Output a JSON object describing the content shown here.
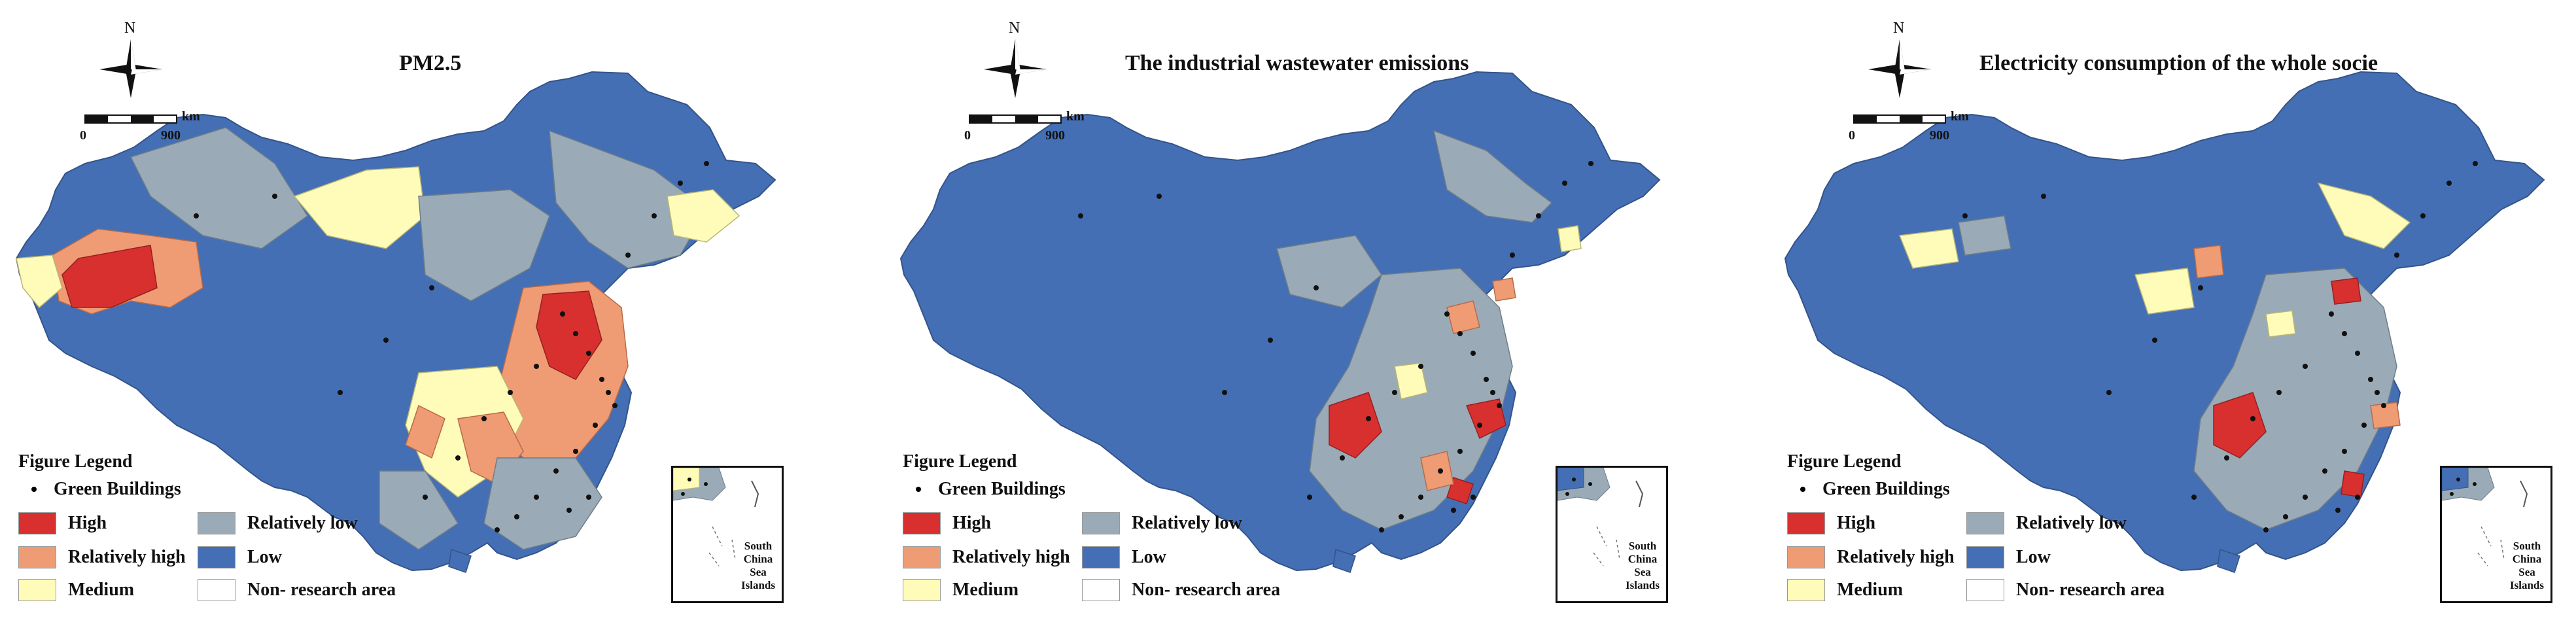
{
  "colors": {
    "high": "#d7302f",
    "relatively_high": "#ef9b73",
    "medium": "#fefcb8",
    "relatively_low": "#9aabb7",
    "low": "#456fb4",
    "non_research": "#ffffff"
  },
  "common": {
    "north_letter": "N",
    "scale_unit": "km",
    "scale_min": "0",
    "scale_max": "900",
    "legend_title": "Figure Legend",
    "legend_green_buildings": "Green Buildings",
    "legend_high": "High",
    "legend_relatively_high": "Relatively high",
    "legend_medium": "Medium",
    "legend_relatively_low": "Relatively low",
    "legend_low": "Low",
    "legend_non_research": "Non- research area",
    "inset_label_1": "South",
    "inset_label_2": "China",
    "inset_label_3": "Sea",
    "inset_label_4": "Islands"
  },
  "maps": [
    {
      "title": "PM2.5"
    },
    {
      "title": "The industrial wastewater emissions"
    },
    {
      "title": "Electricity consumption of the whole socie"
    }
  ]
}
